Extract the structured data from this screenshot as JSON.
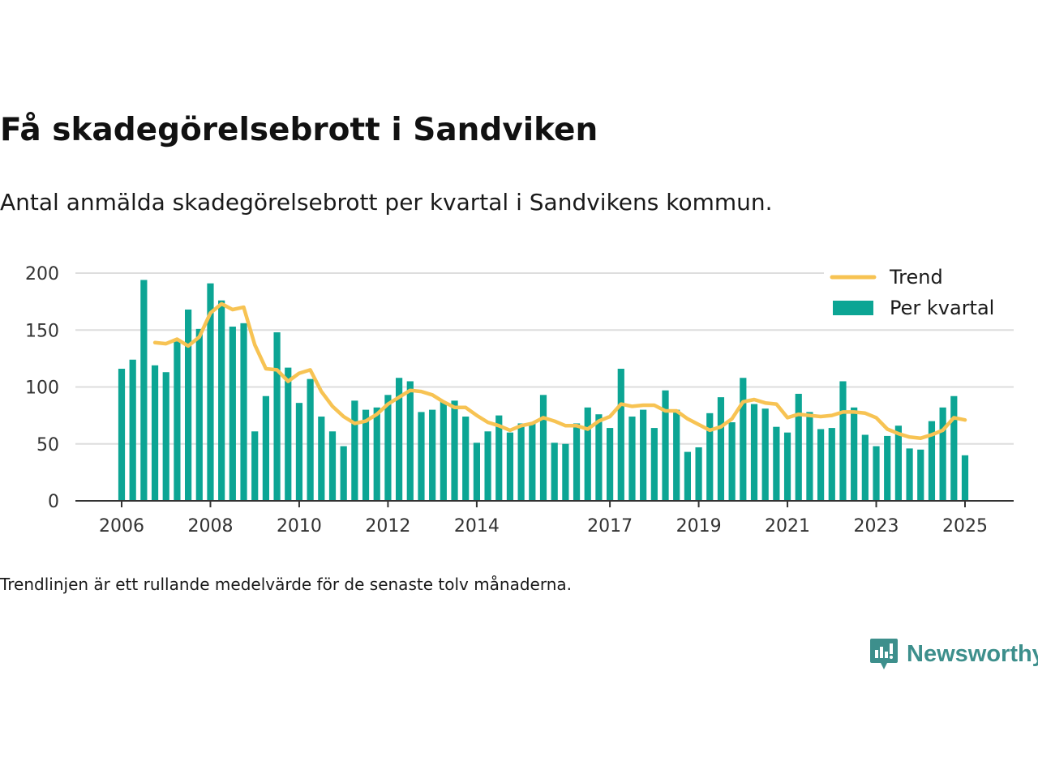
{
  "title": "Få skadegörelsebrott i Sandviken",
  "subtitle": "Antal anmälda skadegörelsebrott per kvartal i Sandvikens kommun.",
  "footnote": "Trendlinjen är ett rullande medelvärde för de senaste tolv månaderna.",
  "brand": {
    "name": "Newsworthy",
    "icon": "newsworthy-logo-icon",
    "color": "#3d8f8c"
  },
  "colors": {
    "bars": "#0ca594",
    "trend": "#f7c353",
    "grid": "#dddddd",
    "axis": "#333333"
  },
  "chart_data": {
    "type": "bar",
    "ylim": [
      0,
      200
    ],
    "y_ticks": [
      0,
      50,
      100,
      150,
      200
    ],
    "xlim": [
      2006,
      2025.15
    ],
    "x_ticks": [
      2006,
      2008,
      2010,
      2012,
      2014,
      2017,
      2019,
      2021,
      2023,
      2025
    ],
    "grid": true,
    "legend_position": "top-right",
    "legend": [
      "Trend",
      "Per kvartal"
    ],
    "x": [
      2006.0,
      2006.25,
      2006.5,
      2006.75,
      2007.0,
      2007.25,
      2007.5,
      2007.75,
      2008.0,
      2008.25,
      2008.5,
      2008.75,
      2009.0,
      2009.25,
      2009.5,
      2009.75,
      2010.0,
      2010.25,
      2010.5,
      2010.75,
      2011.0,
      2011.25,
      2011.5,
      2011.75,
      2012.0,
      2012.25,
      2012.5,
      2012.75,
      2013.0,
      2013.25,
      2013.5,
      2013.75,
      2014.0,
      2014.25,
      2014.5,
      2014.75,
      2015.0,
      2015.25,
      2015.5,
      2015.75,
      2016.0,
      2016.25,
      2016.5,
      2016.75,
      2017.0,
      2017.25,
      2017.5,
      2017.75,
      2018.0,
      2018.25,
      2018.5,
      2018.75,
      2019.0,
      2019.25,
      2019.5,
      2019.75,
      2020.0,
      2020.25,
      2020.5,
      2020.75,
      2021.0,
      2021.25,
      2021.5,
      2021.75,
      2022.0,
      2022.25,
      2022.5,
      2022.75,
      2023.0,
      2023.25,
      2023.5,
      2023.75,
      2024.0,
      2024.25,
      2024.5,
      2024.75,
      2025.0
    ],
    "series": [
      {
        "name": "Per kvartal",
        "type": "bar",
        "values": [
          116,
          124,
          194,
          119,
          113,
          140,
          168,
          151,
          191,
          176,
          153,
          156,
          61,
          92,
          148,
          117,
          86,
          107,
          74,
          61,
          48,
          88,
          80,
          82,
          93,
          108,
          105,
          78,
          80,
          87,
          88,
          74,
          51,
          61,
          75,
          60,
          68,
          68,
          93,
          51,
          50,
          68,
          82,
          76,
          64,
          116,
          74,
          80,
          64,
          97,
          80,
          43,
          47,
          77,
          91,
          69,
          108,
          85,
          81,
          65,
          60,
          94,
          78,
          63,
          64,
          105,
          82,
          58,
          48,
          57,
          66,
          46,
          45,
          70,
          82,
          92,
          40
        ]
      },
      {
        "name": "Trend",
        "type": "line",
        "values": [
          null,
          null,
          null,
          139,
          138,
          142,
          136,
          144,
          165,
          173,
          168,
          170,
          137,
          116,
          115,
          105,
          112,
          115,
          96,
          83,
          74,
          68,
          70,
          76,
          85,
          91,
          97,
          96,
          93,
          87,
          82,
          82,
          75,
          69,
          66,
          62,
          66,
          68,
          73,
          70,
          66,
          66,
          63,
          70,
          74,
          85,
          83,
          84,
          84,
          79,
          79,
          72,
          67,
          62,
          65,
          72,
          87,
          89,
          86,
          85,
          73,
          76,
          75,
          74,
          75,
          78,
          78,
          77,
          73,
          63,
          59,
          56,
          55,
          58,
          62,
          73,
          71
        ]
      }
    ]
  }
}
